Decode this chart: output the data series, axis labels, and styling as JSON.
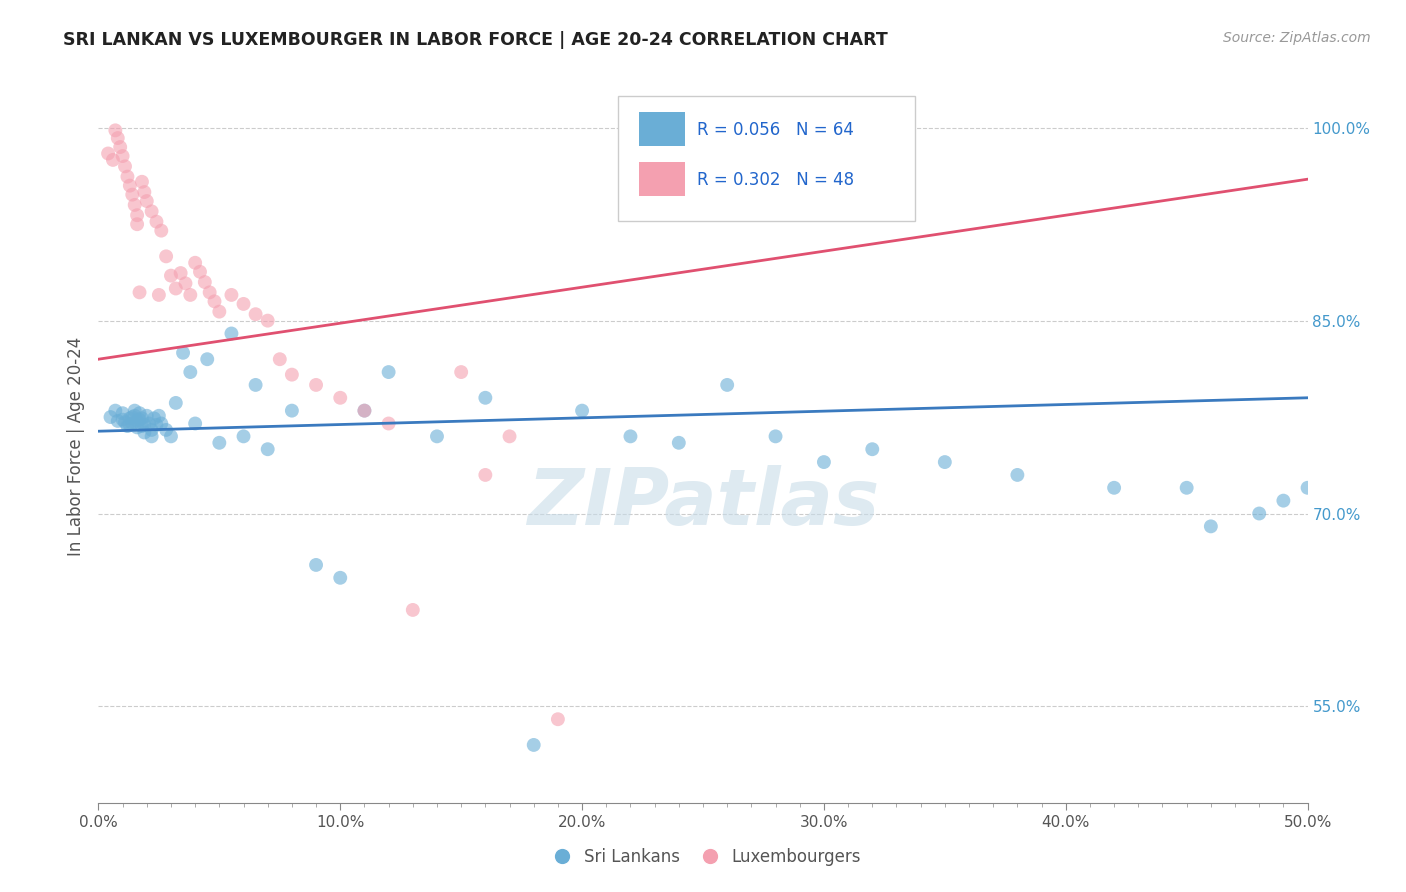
{
  "title": "SRI LANKAN VS LUXEMBOURGER IN LABOR FORCE | AGE 20-24 CORRELATION CHART",
  "source_text": "Source: ZipAtlas.com",
  "ylabel": "In Labor Force | Age 20-24",
  "xlim": [
    0.0,
    0.5
  ],
  "ylim": [
    0.475,
    1.03
  ],
  "xtick_labels": [
    "0.0%",
    "",
    "",
    "",
    "",
    "",
    "",
    "",
    "",
    "",
    "10.0%",
    "",
    "",
    "",
    "",
    "",
    "",
    "",
    "",
    "",
    "20.0%",
    "",
    "",
    "",
    "",
    "",
    "",
    "",
    "",
    "",
    "30.0%",
    "",
    "",
    "",
    "",
    "",
    "",
    "",
    "",
    "",
    "40.0%",
    "",
    "",
    "",
    "",
    "",
    "",
    "",
    "",
    "",
    "50.0%"
  ],
  "xtick_vals": [
    0.0,
    0.01,
    0.02,
    0.03,
    0.04,
    0.05,
    0.06,
    0.07,
    0.08,
    0.09,
    0.1,
    0.11,
    0.12,
    0.13,
    0.14,
    0.15,
    0.16,
    0.17,
    0.18,
    0.19,
    0.2,
    0.21,
    0.22,
    0.23,
    0.24,
    0.25,
    0.26,
    0.27,
    0.28,
    0.29,
    0.3,
    0.31,
    0.32,
    0.33,
    0.34,
    0.35,
    0.36,
    0.37,
    0.38,
    0.39,
    0.4,
    0.41,
    0.42,
    0.43,
    0.44,
    0.45,
    0.46,
    0.47,
    0.48,
    0.49,
    0.5
  ],
  "xtick_major_labels": [
    "0.0%",
    "10.0%",
    "20.0%",
    "30.0%",
    "40.0%",
    "50.0%"
  ],
  "xtick_major_vals": [
    0.0,
    0.1,
    0.2,
    0.3,
    0.4,
    0.5
  ],
  "ytick_labels": [
    "55.0%",
    "70.0%",
    "85.0%",
    "100.0%"
  ],
  "ytick_vals": [
    0.55,
    0.7,
    0.85,
    1.0
  ],
  "blue_R": 0.056,
  "blue_N": 64,
  "pink_R": 0.302,
  "pink_N": 48,
  "blue_color": "#6aaed6",
  "pink_color": "#f4a0b0",
  "blue_line_color": "#3a7abf",
  "pink_line_color": "#e05070",
  "watermark": "ZIPatlas",
  "watermark_color": "#c8dce8",
  "blue_trend_x": [
    0.0,
    0.5
  ],
  "blue_trend_y": [
    0.764,
    0.79
  ],
  "pink_trend_x": [
    0.0,
    0.5
  ],
  "pink_trend_y": [
    0.82,
    0.96
  ],
  "blue_scatter_x": [
    0.005,
    0.007,
    0.008,
    0.01,
    0.01,
    0.011,
    0.012,
    0.013,
    0.013,
    0.014,
    0.014,
    0.015,
    0.015,
    0.016,
    0.016,
    0.017,
    0.017,
    0.018,
    0.018,
    0.019,
    0.019,
    0.02,
    0.021,
    0.022,
    0.022,
    0.023,
    0.024,
    0.025,
    0.026,
    0.028,
    0.03,
    0.032,
    0.035,
    0.038,
    0.04,
    0.045,
    0.05,
    0.055,
    0.06,
    0.065,
    0.07,
    0.08,
    0.09,
    0.1,
    0.11,
    0.12,
    0.14,
    0.16,
    0.18,
    0.2,
    0.22,
    0.24,
    0.26,
    0.28,
    0.3,
    0.32,
    0.35,
    0.38,
    0.42,
    0.45,
    0.46,
    0.48,
    0.49,
    0.5
  ],
  "blue_scatter_y": [
    0.775,
    0.78,
    0.772,
    0.778,
    0.773,
    0.771,
    0.768,
    0.774,
    0.769,
    0.775,
    0.77,
    0.78,
    0.776,
    0.772,
    0.767,
    0.778,
    0.773,
    0.768,
    0.774,
    0.769,
    0.763,
    0.776,
    0.77,
    0.765,
    0.76,
    0.774,
    0.769,
    0.776,
    0.77,
    0.765,
    0.76,
    0.786,
    0.825,
    0.81,
    0.77,
    0.82,
    0.755,
    0.84,
    0.76,
    0.8,
    0.75,
    0.78,
    0.66,
    0.65,
    0.78,
    0.81,
    0.76,
    0.79,
    0.52,
    0.78,
    0.76,
    0.755,
    0.8,
    0.76,
    0.74,
    0.75,
    0.74,
    0.73,
    0.72,
    0.72,
    0.69,
    0.7,
    0.71,
    0.72
  ],
  "pink_scatter_x": [
    0.004,
    0.006,
    0.007,
    0.008,
    0.009,
    0.01,
    0.011,
    0.012,
    0.013,
    0.014,
    0.015,
    0.016,
    0.016,
    0.017,
    0.018,
    0.019,
    0.02,
    0.022,
    0.024,
    0.025,
    0.026,
    0.028,
    0.03,
    0.032,
    0.034,
    0.036,
    0.038,
    0.04,
    0.042,
    0.044,
    0.046,
    0.048,
    0.05,
    0.055,
    0.06,
    0.065,
    0.07,
    0.075,
    0.08,
    0.09,
    0.1,
    0.11,
    0.12,
    0.13,
    0.15,
    0.16,
    0.17,
    0.19
  ],
  "pink_scatter_y": [
    0.98,
    0.975,
    0.998,
    0.992,
    0.985,
    0.978,
    0.97,
    0.962,
    0.955,
    0.948,
    0.94,
    0.932,
    0.925,
    0.872,
    0.958,
    0.95,
    0.943,
    0.935,
    0.927,
    0.87,
    0.92,
    0.9,
    0.885,
    0.875,
    0.887,
    0.879,
    0.87,
    0.895,
    0.888,
    0.88,
    0.872,
    0.865,
    0.857,
    0.87,
    0.863,
    0.855,
    0.85,
    0.82,
    0.808,
    0.8,
    0.79,
    0.78,
    0.77,
    0.625,
    0.81,
    0.73,
    0.76,
    0.54
  ]
}
